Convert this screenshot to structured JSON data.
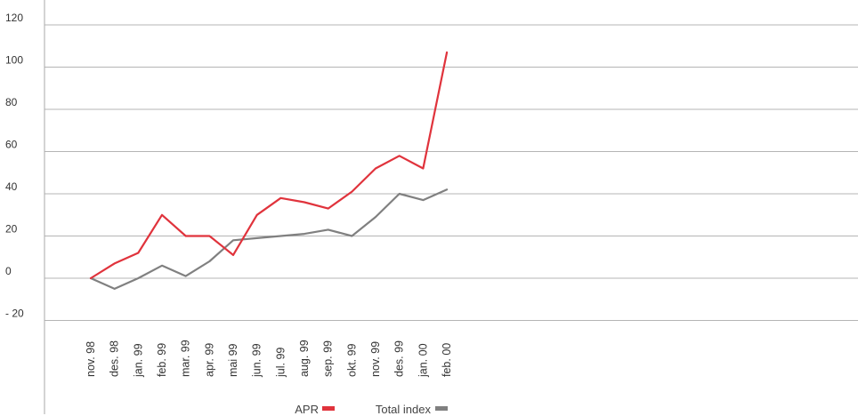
{
  "chart_data": {
    "type": "line",
    "title": "",
    "xlabel": "",
    "ylabel": "",
    "categories": [
      "nov. 98",
      "des. 98",
      "jan. 99",
      "feb. 99",
      "mar. 99",
      "apr. 99",
      "mai 99",
      "jun. 99",
      "jul. 99",
      "aug. 99",
      "sep. 99",
      "okt. 99",
      "nov. 99",
      "des. 99",
      "jan. 00",
      "feb. 00"
    ],
    "y_ticks": [
      "120",
      "100",
      "80",
      "60",
      "40",
      "20",
      "0",
      "- 20"
    ],
    "ylim": [
      -20,
      120
    ],
    "grid": "horizontal",
    "legend_position": "bottom-center",
    "series": [
      {
        "name": "APR",
        "color": "#e0333c",
        "values": [
          0,
          7,
          12,
          30,
          20,
          20,
          11,
          30,
          38,
          36,
          33,
          41,
          52,
          58,
          52,
          107
        ]
      },
      {
        "name": "Total index",
        "color": "#808080",
        "values": [
          0,
          -5,
          0,
          6,
          1,
          8,
          18,
          19,
          20,
          21,
          23,
          20,
          29,
          40,
          37,
          42
        ]
      }
    ]
  }
}
